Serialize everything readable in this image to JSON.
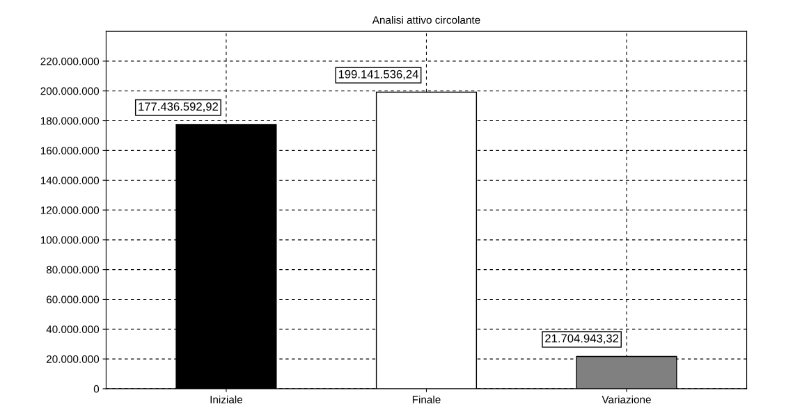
{
  "chart_data": {
    "type": "bar",
    "title": "Analisi attivo circolante",
    "categories": [
      "Iniziale",
      "Finale",
      "Variazione"
    ],
    "values": [
      177436592.92,
      199141536.24,
      21704943.32
    ],
    "colors": [
      "#000000",
      "#ffffff",
      "#808080"
    ],
    "value_labels": [
      "177.436.592,92",
      "199.141.536,24",
      "21.704.943,32"
    ],
    "ylim": [
      0,
      240000000
    ],
    "yticks": [
      {
        "value": 0,
        "label": "0"
      },
      {
        "value": 20000000,
        "label": "20.000.000"
      },
      {
        "value": 40000000,
        "label": "40.000.000"
      },
      {
        "value": 60000000,
        "label": "60.000.000"
      },
      {
        "value": 80000000,
        "label": "80.000.000"
      },
      {
        "value": 100000000,
        "label": "100.000.000"
      },
      {
        "value": 120000000,
        "label": "120.000.000"
      },
      {
        "value": 140000000,
        "label": "140.000.000"
      },
      {
        "value": 160000000,
        "label": "160.000.000"
      },
      {
        "value": 180000000,
        "label": "180.000.000"
      },
      {
        "value": 200000000,
        "label": "200.000.000"
      },
      {
        "value": 220000000,
        "label": "220.000.000"
      }
    ],
    "grid": true,
    "legend": false
  }
}
